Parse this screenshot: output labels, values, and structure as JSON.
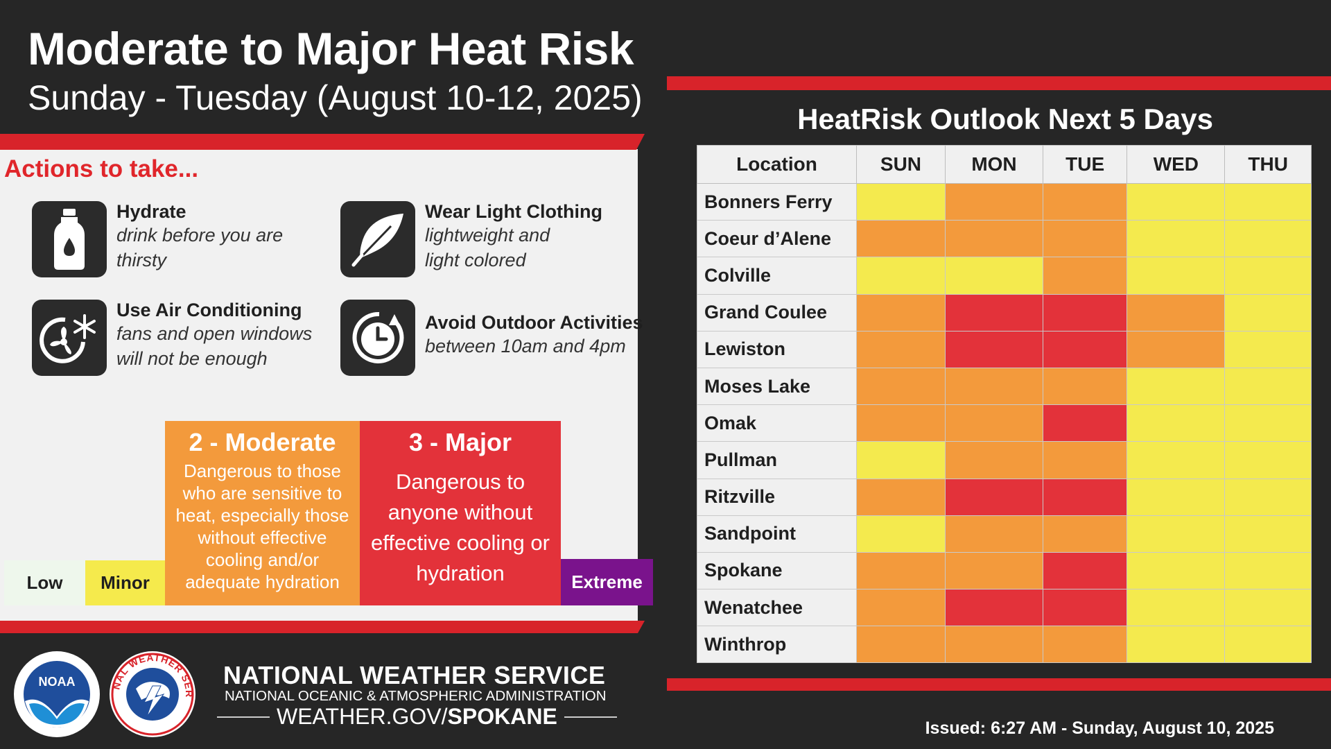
{
  "header": {
    "title": "Moderate to Major Heat Risk",
    "subtitle": "Sunday - Tuesday (August 10-12, 2025)"
  },
  "actions": {
    "heading": "Actions to take...",
    "items": [
      {
        "title": "Hydrate",
        "desc": "drink before you are thirsty",
        "icon": "water-bottle-icon"
      },
      {
        "title": "Wear Light Clothing",
        "desc": "lightweight and light colored",
        "icon": "feather-icon"
      },
      {
        "title": "Use Air Conditioning",
        "desc": "fans and open windows will not be enough",
        "icon": "fan-snowflake-icon"
      },
      {
        "title": "Avoid Outdoor Activities",
        "desc": "between 10am and 4pm",
        "icon": "clock-icon"
      }
    ]
  },
  "scale": {
    "low": "Low",
    "minor": "Minor",
    "moderate_title": "2 - Moderate",
    "moderate_desc": "Dangerous to those who are sensitive to heat, especially those without effective cooling and/or adequate hydration",
    "major_title": "3 - Major",
    "major_desc": "Dangerous to anyone without effective cooling or hydration",
    "extreme": "Extreme",
    "colors": {
      "low": "#eef7ec",
      "minor": "#f5ea4c",
      "moderate": "#f39a3c",
      "major": "#e3323a",
      "extreme": "#7a138c"
    }
  },
  "footer": {
    "nws": "NATIONAL WEATHER SERVICE",
    "noaa": "NATIONAL OCEANIC & ATMOSPHERIC ADMINISTRATION",
    "web_prefix": "WEATHER.GOV/",
    "web_office": "SPOKANE",
    "issued": "Issued: 6:27 AM - Sunday, August 10, 2025",
    "noaa_logo_text": "NOAA",
    "nws_logo_text": "NATIONAL WEATHER SERVICE"
  },
  "outlook": {
    "title": "HeatRisk Outlook Next 5 Days",
    "columns": [
      "Location",
      "SUN",
      "MON",
      "TUE",
      "WED",
      "THU"
    ],
    "rows": [
      {
        "location": "Bonners Ferry",
        "levels": [
          1,
          2,
          2,
          1,
          1
        ]
      },
      {
        "location": "Coeur d’Alene",
        "levels": [
          2,
          2,
          2,
          1,
          1
        ]
      },
      {
        "location": "Colville",
        "levels": [
          1,
          1,
          2,
          1,
          1
        ]
      },
      {
        "location": "Grand Coulee",
        "levels": [
          2,
          3,
          3,
          2,
          1
        ]
      },
      {
        "location": "Lewiston",
        "levels": [
          2,
          3,
          3,
          2,
          1
        ]
      },
      {
        "location": "Moses Lake",
        "levels": [
          2,
          2,
          2,
          1,
          1
        ]
      },
      {
        "location": "Omak",
        "levels": [
          2,
          2,
          3,
          1,
          1
        ]
      },
      {
        "location": "Pullman",
        "levels": [
          1,
          2,
          2,
          1,
          1
        ]
      },
      {
        "location": "Ritzville",
        "levels": [
          2,
          3,
          3,
          1,
          1
        ]
      },
      {
        "location": "Sandpoint",
        "levels": [
          1,
          2,
          2,
          1,
          1
        ]
      },
      {
        "location": "Spokane",
        "levels": [
          2,
          2,
          3,
          1,
          1
        ]
      },
      {
        "location": "Wenatchee",
        "levels": [
          2,
          3,
          3,
          1,
          1
        ]
      },
      {
        "location": "Winthrop",
        "levels": [
          2,
          2,
          2,
          1,
          1
        ]
      }
    ]
  }
}
